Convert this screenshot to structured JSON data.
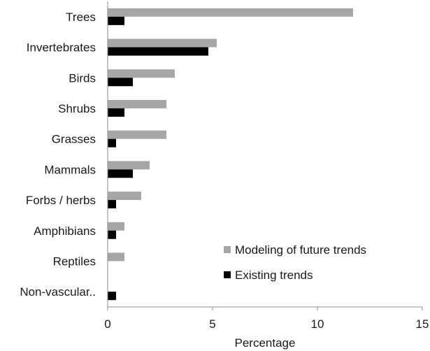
{
  "chart_data": {
    "type": "bar",
    "orientation": "horizontal",
    "categories": [
      "Trees",
      "Invertebrates",
      "Birds",
      "Shrubs",
      "Grasses",
      "Mammals",
      "Forbs / herbs",
      "Amphibians",
      "Reptiles",
      "Non-vascular.."
    ],
    "series": [
      {
        "name": "Modeling of future trends",
        "color": "#a6a6a6",
        "values": [
          11.7,
          5.2,
          3.2,
          2.8,
          2.8,
          2.0,
          1.6,
          0.8,
          0.8,
          0
        ]
      },
      {
        "name": "Existing trends",
        "color": "#000000",
        "values": [
          0.8,
          4.8,
          1.2,
          0.8,
          0.4,
          1.2,
          0.4,
          0.4,
          0,
          0.4
        ]
      }
    ],
    "xlabel": "Percentage",
    "xlim": [
      0,
      15
    ],
    "xticks": [
      0,
      5,
      10,
      15
    ],
    "xtick_labels": [
      "0",
      "5",
      "10",
      "15"
    ],
    "grid": false,
    "legend_position": "lower-right"
  }
}
